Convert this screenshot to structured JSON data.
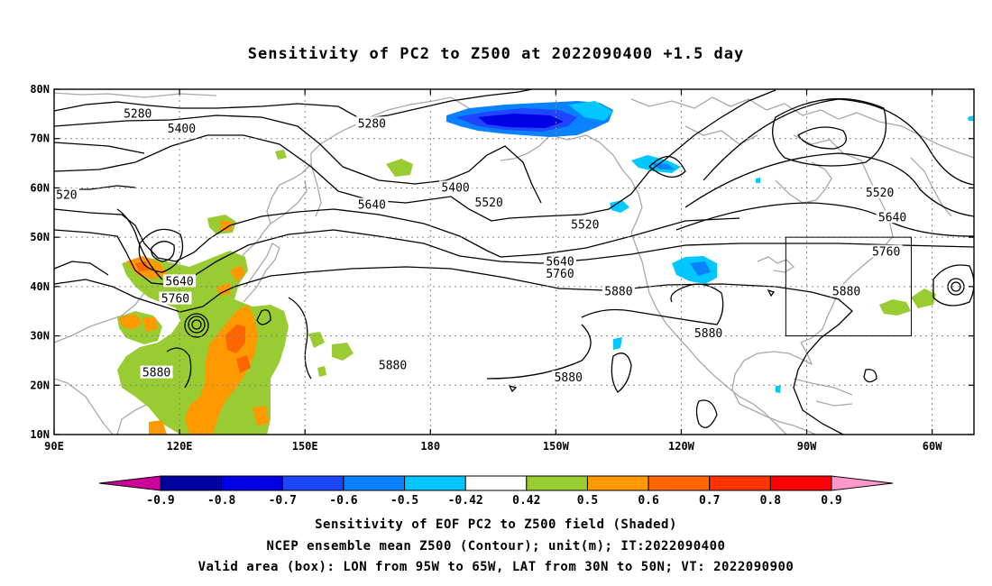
{
  "title": "Sensitivity of PC2 to Z500 at 2022090400 +1.5 day",
  "lon_labels": [
    "90E",
    "120E",
    "150E",
    "180",
    "150W",
    "120W",
    "90W",
    "60W"
  ],
  "lat_labels": [
    "80N",
    "70N",
    "60N",
    "50N",
    "40N",
    "30N",
    "20N",
    "10N"
  ],
  "contour_labels": [
    {
      "text": "5280",
      "lon": 110,
      "lat": 75
    },
    {
      "text": "5400",
      "lon": 120.5,
      "lat": 72
    },
    {
      "text": "5280",
      "lon": 166,
      "lat": 73
    },
    {
      "text": "5400",
      "lon": 186,
      "lat": 60
    },
    {
      "text": "5520",
      "lon": 194,
      "lat": 57
    },
    {
      "text": "520",
      "lon": 93,
      "lat": 58.5
    },
    {
      "text": "5640",
      "lon": 166,
      "lat": 56.5
    },
    {
      "text": "5520",
      "lon": 217,
      "lat": 52.5
    },
    {
      "text": "5640",
      "lon": 120,
      "lat": 41
    },
    {
      "text": "5760",
      "lon": 119,
      "lat": 37.5
    },
    {
      "text": "5640",
      "lon": 211,
      "lat": 45
    },
    {
      "text": "5760",
      "lon": 211,
      "lat": 42.5
    },
    {
      "text": "5880",
      "lon": 225,
      "lat": 39
    },
    {
      "text": "5520",
      "lon": 287.5,
      "lat": 59
    },
    {
      "text": "5640",
      "lon": 290.5,
      "lat": 54
    },
    {
      "text": "5760",
      "lon": 289,
      "lat": 47
    },
    {
      "text": "5880",
      "lon": 279.5,
      "lat": 39
    },
    {
      "text": "5880",
      "lon": 246.5,
      "lat": 30.5
    },
    {
      "text": "5880",
      "lon": 114.5,
      "lat": 22.5
    },
    {
      "text": "5880",
      "lon": 171,
      "lat": 24
    },
    {
      "text": "5880",
      "lon": 213,
      "lat": 21.5
    }
  ],
  "colorbar": {
    "tick_labels": [
      "-0.9",
      "-0.8",
      "-0.7",
      "-0.6",
      "-0.5",
      "-0.42",
      "0.42",
      "0.5",
      "0.6",
      "0.7",
      "0.8",
      "0.9"
    ],
    "colors": [
      "#cc0099",
      "#0000a0",
      "#0000e6",
      "#1e46ff",
      "#0a82ff",
      "#00c8ff",
      "#ffffff",
      "#99cc33",
      "#ff9900",
      "#ff6600",
      "#ff3300",
      "#ff0000",
      "#ff99cc"
    ]
  },
  "valid_box": {
    "lon_min": -95,
    "lon_max": -65,
    "lat_min": 30,
    "lat_max": 50
  },
  "captions": [
    "Sensitivity of EOF PC2 to Z500 field (Shaded)",
    "NCEP ensemble mean Z500 (Contour); unit(m); IT:2022090400",
    "Valid area (box): LON from 95W to 65W, LAT from 30N to 50N; VT: 2022090900"
  ]
}
